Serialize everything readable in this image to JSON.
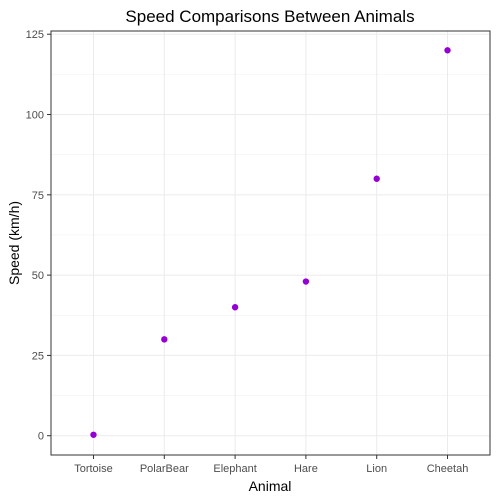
{
  "chart_data": {
    "type": "scatter",
    "title": "Speed Comparisons Between Animals",
    "xlabel": "Animal",
    "ylabel": "Speed (km/h)",
    "categories": [
      "Tortoise",
      "PolarBear",
      "Elephant",
      "Hare",
      "Lion",
      "Cheetah"
    ],
    "values": [
      0.3,
      30,
      40,
      48,
      80,
      120
    ],
    "yticks": [
      0,
      25,
      50,
      75,
      100,
      125
    ],
    "ylim": [
      -6,
      126
    ],
    "grid": true,
    "point_color": "#9400d3",
    "theme": "bw"
  }
}
